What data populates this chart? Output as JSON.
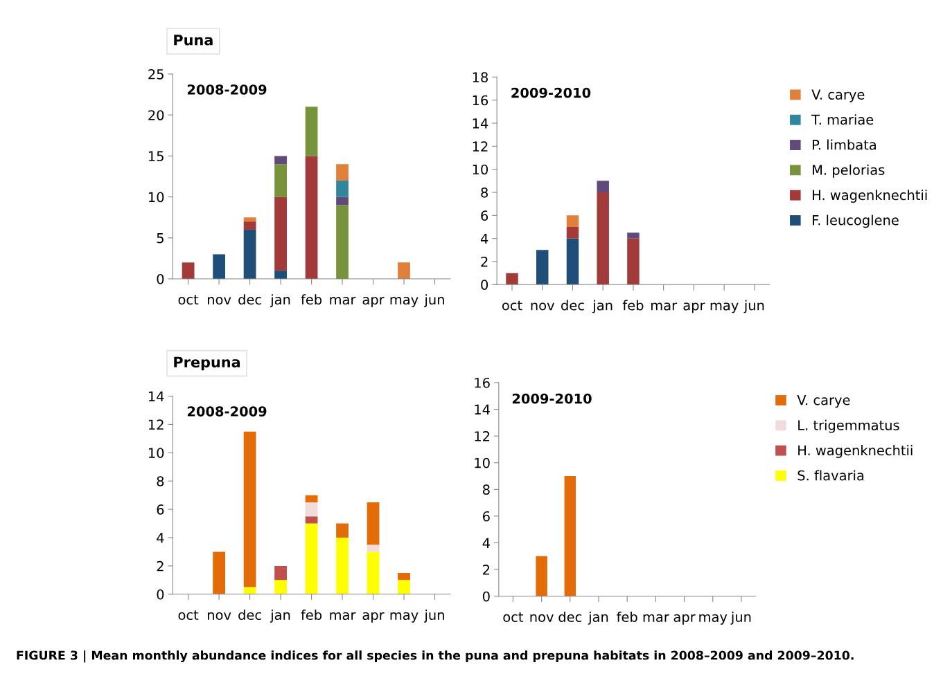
{
  "chart_data": [
    {
      "type": "bar",
      "stacked": true,
      "title": "Puna",
      "subtitle": "2008-2009",
      "categories": [
        "oct",
        "nov",
        "dec",
        "jan",
        "feb",
        "mar",
        "apr",
        "may",
        "jun"
      ],
      "ylim": [
        0,
        25
      ],
      "yticks": [
        0,
        5,
        10,
        15,
        20,
        25
      ],
      "grid": false,
      "legend": false,
      "series": [
        {
          "color": "#1f4e79",
          "values": [
            null,
            3,
            6,
            1,
            null,
            null,
            null,
            null,
            null
          ]
        },
        {
          "color": "#a33a3a",
          "values": [
            2,
            null,
            1,
            9,
            15,
            null,
            null,
            null,
            null
          ]
        },
        {
          "color": "#77933c",
          "values": [
            null,
            null,
            null,
            4,
            6,
            9,
            null,
            null,
            null
          ]
        },
        {
          "color": "#604a7b",
          "values": [
            null,
            null,
            null,
            1,
            null,
            1,
            null,
            null,
            null
          ]
        },
        {
          "color": "#31859c",
          "values": [
            null,
            null,
            null,
            null,
            null,
            2,
            null,
            null,
            null
          ]
        },
        {
          "color": "#e0803a",
          "values": [
            null,
            null,
            0.5,
            null,
            null,
            2,
            null,
            2,
            null
          ]
        }
      ]
    },
    {
      "type": "bar",
      "stacked": true,
      "subtitle": "2009-2010",
      "categories": [
        "oct",
        "nov",
        "dec",
        "jan",
        "feb",
        "mar",
        "apr",
        "may",
        "jun"
      ],
      "ylim": [
        0,
        18
      ],
      "yticks": [
        0,
        2,
        4,
        6,
        8,
        10,
        12,
        14,
        16,
        18
      ],
      "grid": false,
      "legend": "right",
      "series": [
        {
          "name": "F. leucoglene",
          "color": "#1f4e79",
          "values": [
            null,
            3,
            4,
            null,
            null,
            null,
            null,
            null,
            null
          ]
        },
        {
          "name": "H. wagenknechtii",
          "color": "#a33a3a",
          "values": [
            1,
            null,
            1,
            8,
            4,
            null,
            null,
            null,
            null
          ]
        },
        {
          "name": "M. pelorias",
          "color": "#77933c",
          "values": [
            null,
            null,
            null,
            null,
            null,
            null,
            null,
            null,
            null
          ]
        },
        {
          "name": "P. limbata",
          "color": "#604a7b",
          "values": [
            null,
            null,
            null,
            1,
            0.5,
            null,
            null,
            null,
            null
          ]
        },
        {
          "name": "T. mariae",
          "color": "#31859c",
          "values": [
            null,
            null,
            null,
            null,
            null,
            null,
            null,
            null,
            null
          ]
        },
        {
          "name": "V. carye",
          "color": "#e0803a",
          "values": [
            null,
            null,
            1,
            null,
            null,
            null,
            null,
            null,
            null
          ]
        }
      ]
    },
    {
      "type": "bar",
      "stacked": true,
      "title": "Prepuna",
      "subtitle": "2008-2009",
      "categories": [
        "oct",
        "nov",
        "dec",
        "jan",
        "feb",
        "mar",
        "apr",
        "may",
        "jun"
      ],
      "ylim": [
        0,
        14
      ],
      "yticks": [
        0,
        2,
        4,
        6,
        8,
        10,
        12,
        14
      ],
      "grid": false,
      "legend": false,
      "series": [
        {
          "color": "#ffff00",
          "values": [
            null,
            null,
            0.5,
            1,
            5,
            4,
            3,
            1,
            null
          ]
        },
        {
          "color": "#c0504d",
          "values": [
            null,
            null,
            null,
            1,
            0.5,
            null,
            null,
            null,
            null
          ]
        },
        {
          "color": "#f2dcdb",
          "values": [
            null,
            null,
            null,
            null,
            1,
            null,
            0.5,
            null,
            null
          ]
        },
        {
          "color": "#e36c09",
          "values": [
            null,
            3,
            11,
            null,
            0.5,
            1,
            3,
            0.5,
            null
          ]
        }
      ]
    },
    {
      "type": "bar",
      "stacked": true,
      "subtitle": "2009-2010",
      "categories": [
        "oct",
        "nov",
        "dec",
        "jan",
        "feb",
        "mar",
        "apr",
        "may",
        "jun"
      ],
      "ylim": [
        0,
        16
      ],
      "yticks": [
        0,
        2,
        4,
        6,
        8,
        10,
        12,
        14,
        16
      ],
      "grid": false,
      "legend": "right",
      "annotations": [
        "FIGURE 3 | Mean monthly abundance indices for all species in the puna and prepuna habitats in 2008–2009 and 2009–2010."
      ],
      "series": [
        {
          "name": "S. flavaria",
          "color": "#ffff00",
          "values": [
            null,
            null,
            null,
            null,
            null,
            null,
            null,
            null,
            null
          ]
        },
        {
          "name": "H. wagenknechtii",
          "color": "#c0504d",
          "values": [
            null,
            null,
            null,
            null,
            null,
            null,
            null,
            null,
            null
          ]
        },
        {
          "name": "L. trigemmatus",
          "color": "#f2dcdb",
          "values": [
            null,
            null,
            null,
            null,
            null,
            null,
            null,
            null,
            null
          ]
        },
        {
          "name": "V. carye",
          "color": "#e36c09",
          "values": [
            null,
            3,
            9,
            null,
            null,
            null,
            null,
            null,
            null
          ]
        }
      ]
    }
  ]
}
